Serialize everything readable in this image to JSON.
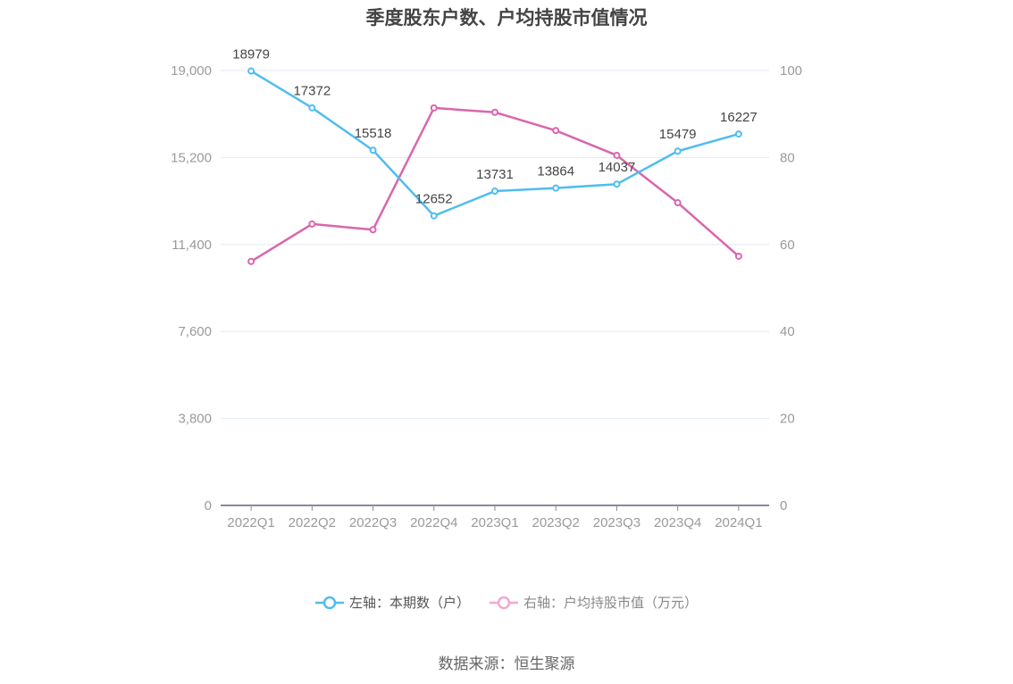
{
  "title": "季度股东户数、户均持股市值情况",
  "source": "数据来源：恒生聚源",
  "legend": {
    "left": "左轴：本期数（户）",
    "right": "右轴：户均持股市值（万元）"
  },
  "colors": {
    "left_series": "#4fbdef",
    "right_series": "#d966ad",
    "right_series_legend": "#f0a8d2",
    "grid": "#e3e8f4",
    "axis": "#8a8a9a"
  },
  "axes": {
    "left_ticks": [
      "0",
      "3,800",
      "7,600",
      "11,400",
      "15,200",
      "19,000"
    ],
    "right_ticks": [
      "0",
      "20",
      "40",
      "60",
      "80",
      "100"
    ]
  },
  "chart_data": {
    "type": "line",
    "title": "季度股东户数、户均持股市值情况",
    "categories": [
      "2022Q1",
      "2022Q2",
      "2022Q3",
      "2022Q4",
      "2023Q1",
      "2023Q2",
      "2023Q3",
      "2023Q4",
      "2024Q1"
    ],
    "series": [
      {
        "name": "左轴：本期数（户）",
        "axis": "left",
        "values": [
          18979,
          17372,
          15518,
          12652,
          13731,
          13864,
          14037,
          15479,
          16227
        ],
        "labels_shown": true
      },
      {
        "name": "右轴：户均持股市值（万元）",
        "axis": "right",
        "values": [
          56.1,
          64.7,
          63.4,
          91.4,
          90.4,
          86.2,
          80.5,
          69.6,
          57.3
        ],
        "labels_shown": false
      }
    ],
    "ylim_left": [
      0,
      19000
    ],
    "ylim_right": [
      0,
      100
    ],
    "left_ticks": [
      0,
      3800,
      7600,
      11400,
      15200,
      19000
    ],
    "right_ticks": [
      0,
      20,
      40,
      60,
      80,
      100
    ],
    "xlabel": "",
    "ylabel": "",
    "grid": true,
    "legend_position": "bottom",
    "source": "数据来源：恒生聚源"
  }
}
